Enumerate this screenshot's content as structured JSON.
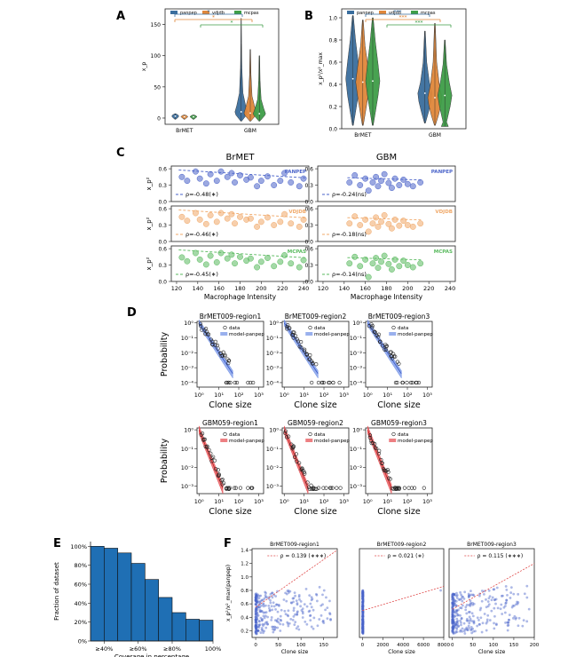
{
  "colors": {
    "panpep": "#3a6e9e",
    "vdjdb": "#e0873a",
    "mcpas": "#3f9e48",
    "scatter_blue": "#4a63c9",
    "scatter_orange": "#f0a868",
    "scatter_green": "#5aba5f",
    "model_blue": "#6e8fe6",
    "model_red": "#e5484d",
    "hist": "#1f6fb4",
    "fit_red": "#e04a4a"
  },
  "panel_labels": {
    "A": "A",
    "B": "B",
    "C": "C",
    "D": "D",
    "E": "E",
    "F": "F"
  },
  "chart_data": [
    {
      "id": "A",
      "type": "violin",
      "legend": [
        "panpep",
        "vdjdb",
        "mcpas"
      ],
      "legend_position": "top",
      "categories": [
        "BrMET",
        "GBM"
      ],
      "ylabel": "x_p",
      "ylim": [
        -10,
        175
      ],
      "yticks": [
        "0",
        "50",
        "100",
        "150"
      ],
      "series": [
        {
          "name": "panpep",
          "medians": [
            3,
            10
          ],
          "max": [
            7,
            160
          ]
        },
        {
          "name": "vdjdb",
          "medians": [
            2,
            8
          ],
          "max": [
            5,
            110
          ]
        },
        {
          "name": "mcpas",
          "medians": [
            2,
            7
          ],
          "max": [
            5,
            100
          ]
        }
      ],
      "significance": [
        "*",
        "*",
        "*"
      ]
    },
    {
      "id": "B",
      "type": "violin",
      "legend": [
        "panpep",
        "vdjdb",
        "mcpas"
      ],
      "legend_position": "top",
      "categories": [
        "BrMET",
        "GBM"
      ],
      "ylabel": "x_p²/x²_max",
      "ylim": [
        0,
        1.08
      ],
      "yticks": [
        "0.0",
        "0.2",
        "0.4",
        "0.6",
        "0.8",
        "1.0"
      ],
      "series": [
        {
          "name": "panpep",
          "medians": [
            0.45,
            0.32
          ]
        },
        {
          "name": "vdjdb",
          "medians": [
            0.42,
            0.28
          ]
        },
        {
          "name": "mcpas",
          "medians": [
            0.43,
            0.3
          ]
        }
      ],
      "significance": [
        "***",
        "***",
        "***"
      ]
    },
    {
      "id": "C",
      "type": "scatter",
      "column_titles": [
        "BrMET",
        "GBM"
      ],
      "xlabel": "Macrophage Intensity",
      "xlim": [
        115,
        245
      ],
      "xticks": [
        "120",
        "140",
        "160",
        "180",
        "200",
        "220",
        "240"
      ],
      "ylim": [
        0,
        0.65
      ],
      "yticks": [
        "0.0",
        "0.3",
        "0.6"
      ],
      "ylabel": "x_p²",
      "rows": [
        {
          "database": "PANPEP",
          "brmet_rho": "ρ=-0.48(∗)",
          "gbm_rho": "ρ=-0.24(ns)",
          "brmet_points": [
            [
              125,
              0.45
            ],
            [
              130,
              0.38
            ],
            [
              138,
              0.55
            ],
            [
              142,
              0.42
            ],
            [
              148,
              0.33
            ],
            [
              152,
              0.5
            ],
            [
              158,
              0.38
            ],
            [
              162,
              0.55
            ],
            [
              168,
              0.45
            ],
            [
              172,
              0.52
            ],
            [
              175,
              0.35
            ],
            [
              180,
              0.48
            ],
            [
              186,
              0.4
            ],
            [
              190,
              0.44
            ],
            [
              196,
              0.28
            ],
            [
              200,
              0.38
            ],
            [
              206,
              0.46
            ],
            [
              212,
              0.3
            ],
            [
              218,
              0.38
            ],
            [
              222,
              0.52
            ],
            [
              228,
              0.35
            ],
            [
              236,
              0.28
            ],
            [
              240,
              0.42
            ]
          ],
          "gbm_points": [
            [
              145,
              0.35
            ],
            [
              150,
              0.48
            ],
            [
              155,
              0.3
            ],
            [
              160,
              0.42
            ],
            [
              163,
              0.2
            ],
            [
              167,
              0.35
            ],
            [
              170,
              0.45
            ],
            [
              172,
              0.28
            ],
            [
              175,
              0.38
            ],
            [
              178,
              0.5
            ],
            [
              182,
              0.34
            ],
            [
              185,
              0.25
            ],
            [
              188,
              0.42
            ],
            [
              192,
              0.3
            ],
            [
              196,
              0.4
            ],
            [
              200,
              0.32
            ],
            [
              205,
              0.28
            ],
            [
              212,
              0.35
            ]
          ]
        },
        {
          "database": "VDJDB",
          "brmet_rho": "ρ=-0.46(∗)",
          "gbm_rho": "ρ=-0.18(ns)",
          "brmet_points": [
            [
              125,
              0.45
            ],
            [
              130,
              0.38
            ],
            [
              138,
              0.52
            ],
            [
              142,
              0.4
            ],
            [
              148,
              0.32
            ],
            [
              152,
              0.48
            ],
            [
              158,
              0.36
            ],
            [
              162,
              0.52
            ],
            [
              168,
              0.42
            ],
            [
              172,
              0.5
            ],
            [
              175,
              0.33
            ],
            [
              180,
              0.45
            ],
            [
              186,
              0.4
            ],
            [
              190,
              0.42
            ],
            [
              196,
              0.27
            ],
            [
              200,
              0.36
            ],
            [
              206,
              0.44
            ],
            [
              212,
              0.3
            ],
            [
              218,
              0.36
            ],
            [
              222,
              0.5
            ],
            [
              228,
              0.33
            ],
            [
              236,
              0.27
            ],
            [
              240,
              0.4
            ]
          ],
          "gbm_points": [
            [
              145,
              0.33
            ],
            [
              150,
              0.46
            ],
            [
              155,
              0.3
            ],
            [
              160,
              0.4
            ],
            [
              163,
              0.18
            ],
            [
              167,
              0.33
            ],
            [
              170,
              0.44
            ],
            [
              172,
              0.27
            ],
            [
              175,
              0.36
            ],
            [
              178,
              0.48
            ],
            [
              182,
              0.32
            ],
            [
              185,
              0.24
            ],
            [
              188,
              0.4
            ],
            [
              192,
              0.29
            ],
            [
              196,
              0.38
            ],
            [
              200,
              0.3
            ],
            [
              205,
              0.27
            ],
            [
              212,
              0.33
            ]
          ]
        },
        {
          "database": "MCPAS",
          "brmet_rho": "ρ=-0.45(∗)",
          "gbm_rho": "ρ=-0.14(ns)",
          "brmet_points": [
            [
              125,
              0.44
            ],
            [
              130,
              0.37
            ],
            [
              138,
              0.52
            ],
            [
              142,
              0.4
            ],
            [
              148,
              0.31
            ],
            [
              152,
              0.47
            ],
            [
              158,
              0.35
            ],
            [
              162,
              0.52
            ],
            [
              168,
              0.42
            ],
            [
              172,
              0.49
            ],
            [
              175,
              0.33
            ],
            [
              180,
              0.45
            ],
            [
              186,
              0.38
            ],
            [
              190,
              0.42
            ],
            [
              196,
              0.26
            ],
            [
              200,
              0.36
            ],
            [
              206,
              0.43
            ],
            [
              212,
              0.28
            ],
            [
              218,
              0.36
            ],
            [
              222,
              0.48
            ],
            [
              228,
              0.33
            ],
            [
              236,
              0.26
            ],
            [
              240,
              0.39
            ]
          ],
          "gbm_points": [
            [
              145,
              0.33
            ],
            [
              150,
              0.45
            ],
            [
              155,
              0.28
            ],
            [
              160,
              0.4
            ],
            [
              163,
              0.08
            ],
            [
              167,
              0.33
            ],
            [
              170,
              0.43
            ],
            [
              172,
              0.25
            ],
            [
              175,
              0.36
            ],
            [
              178,
              0.47
            ],
            [
              182,
              0.32
            ],
            [
              185,
              0.22
            ],
            [
              188,
              0.4
            ],
            [
              192,
              0.28
            ],
            [
              196,
              0.38
            ],
            [
              200,
              0.3
            ],
            [
              205,
              0.26
            ],
            [
              212,
              0.33
            ]
          ]
        }
      ]
    },
    {
      "id": "D",
      "type": "scatter",
      "xlabel": "Clone size",
      "ylabel": "Probability",
      "xscale": "log",
      "yscale": "log",
      "legend": [
        "data"
      ],
      "top_row": {
        "titles": [
          "BrMET009-region1",
          "BrMET009-region2",
          "BrMET009-region3"
        ],
        "model_label": "model-panpep",
        "xticks": [
          "10⁰",
          "10¹",
          "10²",
          "10³"
        ],
        "yticks": [
          "10⁰",
          "10⁻¹",
          "10⁻²",
          "10⁻³",
          "10⁻⁴"
        ],
        "ylim_exp": [
          -4.3,
          0.1
        ]
      },
      "bottom_row": {
        "titles": [
          "GBM059-region1",
          "GBM059-region2",
          "GBM059-region3"
        ],
        "model_label": "model-panpep",
        "xticks": [
          "10⁰",
          "10¹",
          "10²",
          "10³"
        ],
        "yticks": [
          "10⁰",
          "10⁻¹",
          "10⁻²",
          "10⁻³"
        ],
        "ylim_exp": [
          -3.4,
          0.1
        ]
      }
    },
    {
      "id": "E",
      "type": "bar",
      "xlabel": "Coverage in percentage",
      "ylabel": "Fraction of dataset",
      "xticks": [
        "≥40%",
        "≥60%",
        "≥80%",
        "100%"
      ],
      "yticks": [
        "0%",
        "20%",
        "40%",
        "60%",
        "80%",
        "100%"
      ],
      "ylim": [
        0,
        1.05
      ],
      "values": [
        1.0,
        0.98,
        0.93,
        0.82,
        0.65,
        0.46,
        0.3,
        0.23,
        0.22
      ]
    },
    {
      "id": "F",
      "type": "scatter",
      "ylabel": "x_p²/x²_max(panpep)",
      "xlabel": "Clone size",
      "panels": [
        {
          "title": "BrMET009-region1",
          "fit_label": "ρ = 0.139 (∗∗∗)",
          "xlim": [
            -8,
            180
          ],
          "xticks": [
            "0",
            "50",
            "100",
            "150"
          ],
          "xtick_vals": [
            0,
            50,
            100,
            150
          ],
          "ylim": [
            0.1,
            1.42
          ],
          "yticks": [
            "0.2",
            "0.4",
            "0.6",
            "0.8",
            "1.0",
            "1.2",
            "1.4"
          ],
          "fit": [
            [
              0,
              0.55
            ],
            [
              180,
              1.4
            ]
          ]
        },
        {
          "title": "BrMET009-region2",
          "fit_label": "ρ = 0.021 (∗)",
          "xlim": [
            -300,
            8000
          ],
          "xticks": [
            "0",
            "2000",
            "4000",
            "6000",
            "8000"
          ],
          "xtick_vals": [
            0,
            2000,
            4000,
            6000,
            8000
          ],
          "ylim": [
            0.1,
            1.42
          ],
          "fit": [
            [
              0,
              0.5
            ],
            [
              8000,
              0.86
            ]
          ]
        },
        {
          "title": "BrMET009-region3",
          "fit_label": "ρ = 0.115 (∗∗∗)",
          "xlim": [
            -8,
            200
          ],
          "xticks": [
            "0",
            "50",
            "100",
            "150",
            "200"
          ],
          "xtick_vals": [
            0,
            50,
            100,
            150,
            200
          ],
          "ylim": [
            0.1,
            1.42
          ],
          "fit": [
            [
              0,
              0.52
            ],
            [
              200,
              1.2
            ]
          ]
        }
      ]
    }
  ]
}
